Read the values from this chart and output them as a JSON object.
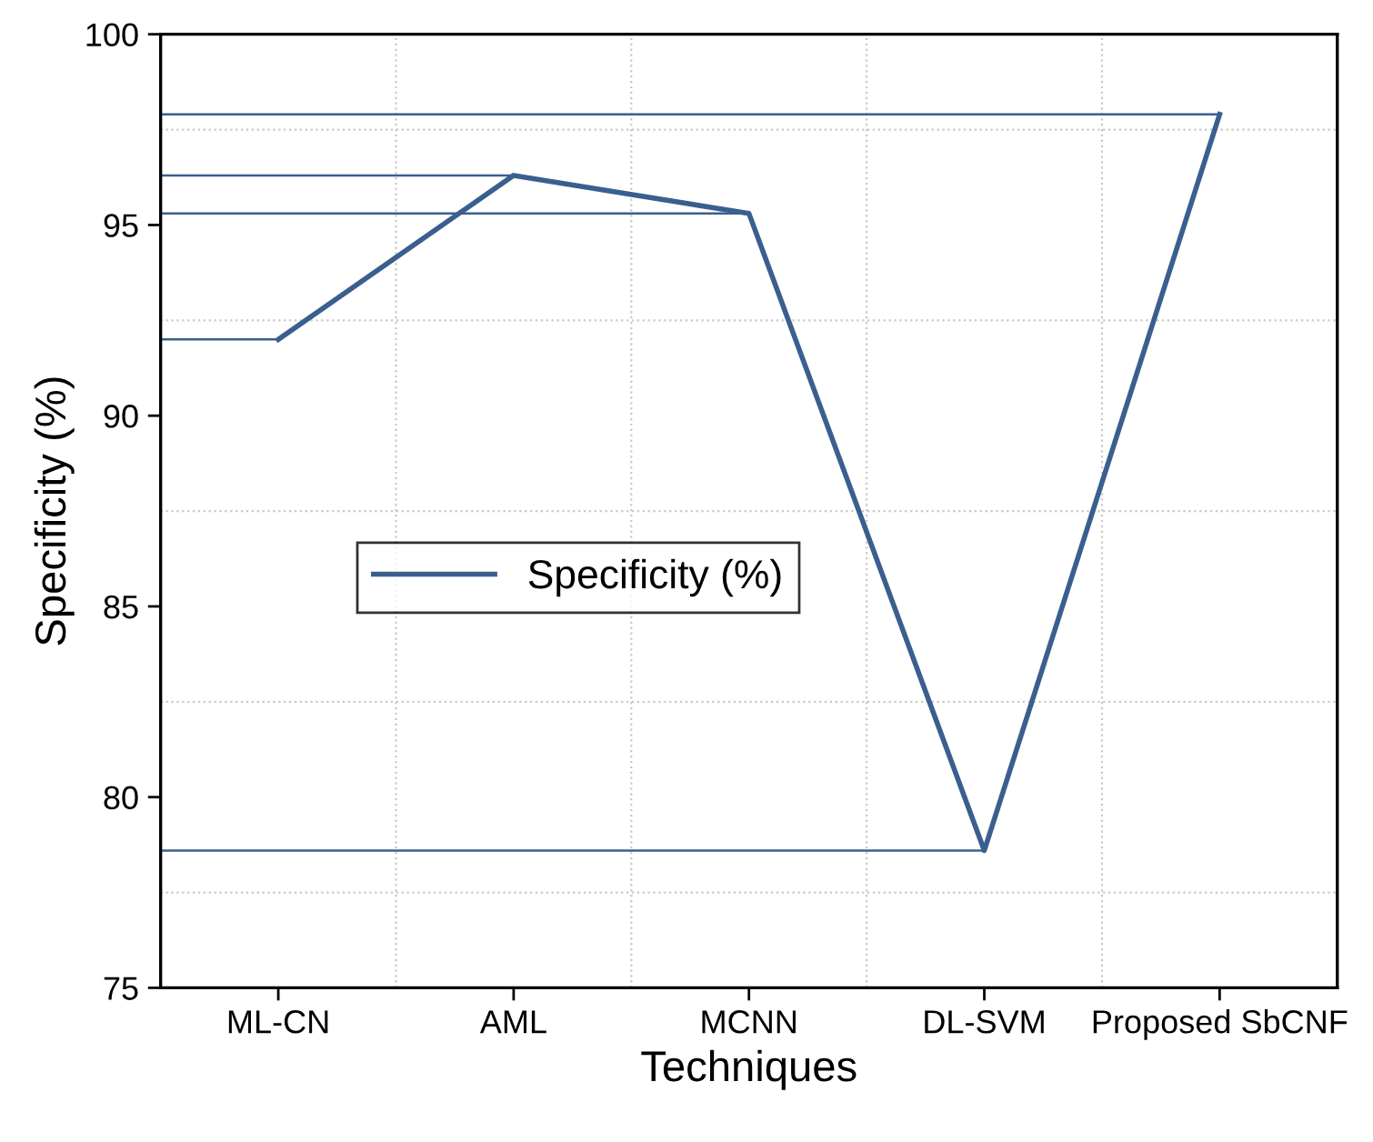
{
  "chart_data": {
    "type": "line",
    "xlabel": "Techniques",
    "ylabel": "Specificity (%)",
    "categories": [
      "ML-CN",
      "AML",
      "MCNN",
      "DL-SVM",
      "Proposed SbCNF"
    ],
    "series": [
      {
        "name": "Specificity (%)",
        "color": "#3a5f8f",
        "values": [
          92.0,
          96.3,
          95.3,
          78.6,
          97.9
        ]
      }
    ],
    "ylim": [
      75,
      100
    ],
    "yticks": [
      75,
      80,
      85,
      90,
      95,
      100
    ],
    "ref_lines": [
      {
        "axis": "y",
        "value": 92.0,
        "color": "#3a5f8f"
      },
      {
        "axis": "y",
        "value": 96.3,
        "color": "#3a5f8f"
      },
      {
        "axis": "y",
        "value": 95.3,
        "color": "#3a5f8f"
      },
      {
        "axis": "y",
        "value": 78.6,
        "color": "#3a5f8f"
      },
      {
        "axis": "y",
        "value": 97.9,
        "color": "#3a5f8f"
      }
    ],
    "grid": true,
    "legend": "center left",
    "marker": "none",
    "line_style": "solid"
  }
}
